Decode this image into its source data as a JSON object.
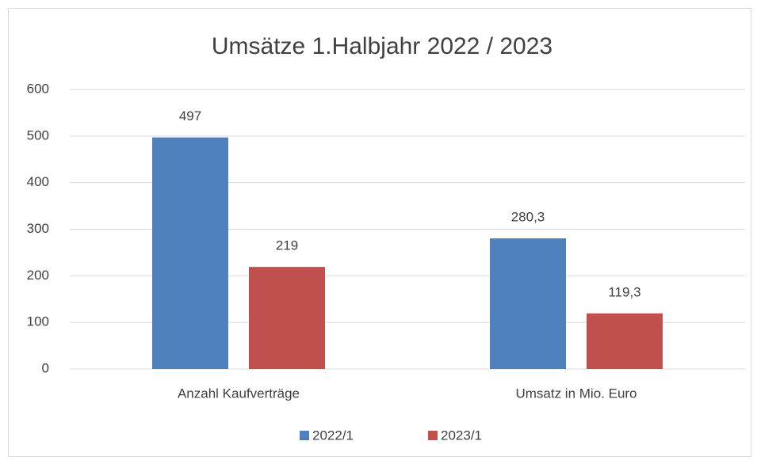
{
  "chart_data": {
    "type": "bar",
    "title": "Umsätze 1.Halbjahr 2022 / 2023",
    "categories": [
      "Anzahl Kaufverträge",
      "Umsatz in Mio. Euro"
    ],
    "series": [
      {
        "name": "2022/1",
        "color": "#4f81bd",
        "values": [
          497,
          280.3
        ],
        "value_labels": [
          "497",
          "280,3"
        ]
      },
      {
        "name": "2023/1",
        "color": "#c0504d",
        "values": [
          219,
          119.3
        ],
        "value_labels": [
          "219",
          "119,3"
        ]
      }
    ],
    "ylim": [
      0,
      600
    ],
    "yticks": [
      0,
      100,
      200,
      300,
      400,
      500,
      600
    ],
    "grid": true,
    "legend": "bottom"
  }
}
